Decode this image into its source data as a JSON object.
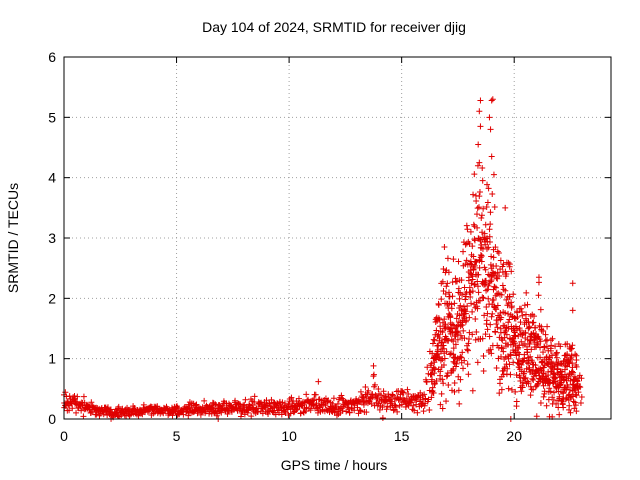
{
  "chart_data": {
    "type": "scatter",
    "title": "Day 104 of 2024, SRMTID for receiver djig",
    "xlabel": "GPS time / hours",
    "ylabel": "SRMTID / TECUs",
    "xlim": [
      0,
      24.3
    ],
    "ylim": [
      0,
      6
    ],
    "xticks": [
      0,
      5,
      10,
      15,
      20
    ],
    "yticks": [
      0,
      1,
      2,
      3,
      4,
      5,
      6
    ],
    "grid": true,
    "marker": "+",
    "series": [
      {
        "name": "SRMTID",
        "color": "#e00000",
        "profile": [
          {
            "t": 0.0,
            "mean": 0.28,
            "spread": 0.12
          },
          {
            "t": 0.5,
            "mean": 0.25,
            "spread": 0.12
          },
          {
            "t": 1.0,
            "mean": 0.18,
            "spread": 0.08
          },
          {
            "t": 2.0,
            "mean": 0.12,
            "spread": 0.07
          },
          {
            "t": 3.0,
            "mean": 0.13,
            "spread": 0.06
          },
          {
            "t": 4.0,
            "mean": 0.14,
            "spread": 0.06
          },
          {
            "t": 5.0,
            "mean": 0.15,
            "spread": 0.06
          },
          {
            "t": 6.0,
            "mean": 0.17,
            "spread": 0.08
          },
          {
            "t": 7.0,
            "mean": 0.18,
            "spread": 0.08
          },
          {
            "t": 8.0,
            "mean": 0.2,
            "spread": 0.09
          },
          {
            "t": 9.0,
            "mean": 0.21,
            "spread": 0.09
          },
          {
            "t": 10.0,
            "mean": 0.2,
            "spread": 0.09
          },
          {
            "t": 11.0,
            "mean": 0.25,
            "spread": 0.12
          },
          {
            "t": 12.0,
            "mean": 0.22,
            "spread": 0.09
          },
          {
            "t": 13.0,
            "mean": 0.25,
            "spread": 0.12
          },
          {
            "t": 13.7,
            "mean": 0.38,
            "spread": 0.25
          },
          {
            "t": 14.5,
            "mean": 0.3,
            "spread": 0.14
          },
          {
            "t": 15.5,
            "mean": 0.3,
            "spread": 0.14
          },
          {
            "t": 16.0,
            "mean": 0.28,
            "spread": 0.12
          },
          {
            "t": 16.5,
            "mean": 1.0,
            "spread": 0.6
          },
          {
            "t": 17.0,
            "mean": 1.6,
            "spread": 0.7
          },
          {
            "t": 17.5,
            "mean": 1.3,
            "spread": 0.8
          },
          {
            "t": 18.0,
            "mean": 2.2,
            "spread": 0.9
          },
          {
            "t": 18.5,
            "mean": 2.6,
            "spread": 1.0
          },
          {
            "t": 19.0,
            "mean": 2.3,
            "spread": 1.0
          },
          {
            "t": 19.5,
            "mean": 1.6,
            "spread": 0.9
          },
          {
            "t": 20.0,
            "mean": 1.3,
            "spread": 0.6
          },
          {
            "t": 20.5,
            "mean": 1.2,
            "spread": 0.6
          },
          {
            "t": 21.0,
            "mean": 1.1,
            "spread": 0.7
          },
          {
            "t": 21.5,
            "mean": 0.8,
            "spread": 0.5
          },
          {
            "t": 22.0,
            "mean": 0.7,
            "spread": 0.4
          },
          {
            "t": 22.5,
            "mean": 0.7,
            "spread": 0.4
          },
          {
            "t": 23.0,
            "mean": 0.5,
            "spread": 0.2
          }
        ],
        "highlights": [
          [
            18.5,
            5.28
          ],
          [
            19.0,
            5.28
          ],
          [
            19.05,
            5.3
          ],
          [
            18.45,
            5.1
          ],
          [
            18.9,
            5.0
          ],
          [
            18.5,
            4.85
          ],
          [
            18.95,
            4.8
          ],
          [
            18.4,
            4.55
          ],
          [
            19.0,
            4.35
          ],
          [
            18.45,
            4.25
          ],
          [
            19.1,
            4.05
          ],
          [
            18.6,
            3.95
          ],
          [
            18.3,
            3.7
          ],
          [
            19.6,
            3.5
          ],
          [
            21.1,
            2.35
          ],
          [
            22.6,
            2.25
          ],
          [
            22.6,
            1.8
          ],
          [
            16.9,
            2.85
          ],
          [
            17.3,
            2.65
          ],
          [
            13.75,
            0.88
          ],
          [
            11.3,
            0.62
          ],
          [
            6.85,
            0.0
          ],
          [
            19.85,
            0.0
          ],
          [
            0.0,
            0.4
          ]
        ]
      }
    ]
  }
}
